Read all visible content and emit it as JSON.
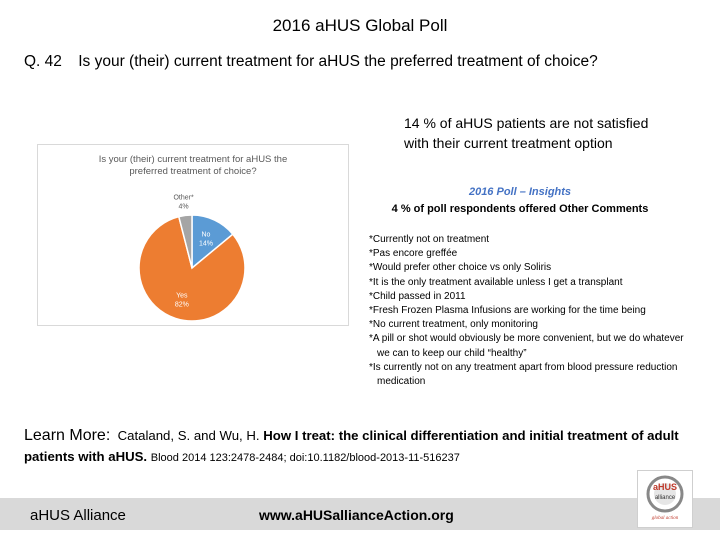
{
  "slide": {
    "title": "2016 aHUS Global Poll",
    "question_number": "Q. 42",
    "question_text": "Is your (their) current treatment for aHUS the preferred treatment of choice?"
  },
  "stat_callout": {
    "line1": "14 % of aHUS patients are not satisfied",
    "line2": "with their current treatment option"
  },
  "chart_data": {
    "type": "pie",
    "title_line1": "Is your (their) current treatment for aHUS the",
    "title_line2": "preferred treatment of choice?",
    "slices": [
      {
        "label": "No",
        "value": 14,
        "value_label": "14%",
        "color": "#5b9bd5"
      },
      {
        "label": "Yes",
        "value": 82,
        "value_label": "82%",
        "color": "#ed7d31"
      },
      {
        "label": "Other*",
        "value": 4,
        "value_label": "4%",
        "color": "#a5a5a5"
      }
    ]
  },
  "insights": {
    "title": "2016 Poll – Insights",
    "subtitle": "4 % of poll respondents offered Other Comments",
    "comments": [
      "*Currently not on treatment",
      "*Pas encore greffée",
      "*Would prefer other choice vs only Soliris",
      "*It is the only treatment available unless I get a transplant",
      "*Child passed in 2011",
      "*Fresh Frozen Plasma Infusions are working for the time being",
      "*No current treatment, only monitoring",
      "*A pill or shot would obviously be more convenient, but we do whatever we can to keep our child “healthy”",
      "*Is currently not on any treatment apart from blood pressure reduction medication"
    ]
  },
  "learn_more": {
    "label": "Learn More:",
    "authors": "Cataland, S. and Wu, H.",
    "title": "How I treat: the clinical differentiation and initial treatment of adult patients with aHUS.",
    "journal": "Blood 2014 123:2478-2484; doi:10.1182/blood-2013-11-516237"
  },
  "footer": {
    "org": "aHUS Alliance",
    "url": "www.aHUSallianceAction.org"
  },
  "logo": {
    "brand": "aHUS",
    "sub": "alliance",
    "tagline": "global action",
    "colors": {
      "accent": "#c0392b",
      "ring": "#888888"
    }
  }
}
